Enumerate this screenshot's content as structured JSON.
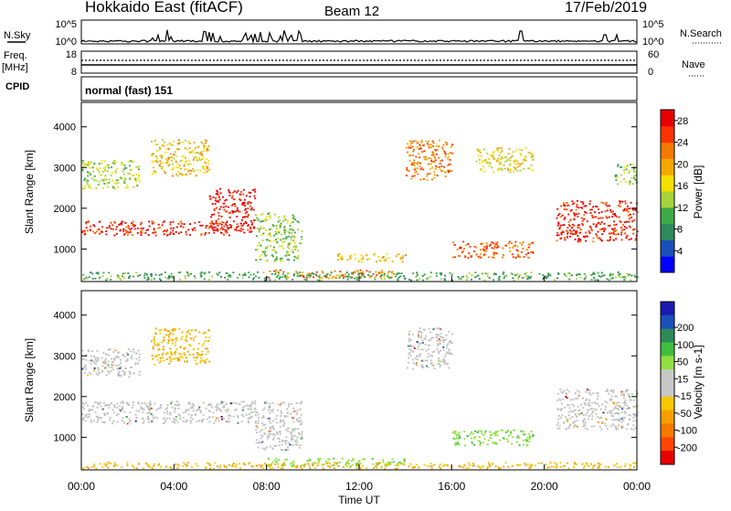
{
  "header": {
    "title": "Hokkaido East (fitACF)",
    "beam": "Beam 12",
    "date": "17/Feb/2019"
  },
  "top_panels": {
    "nsky_label": "N.Sky",
    "nsky_ticks": [
      "10^5",
      "10^0"
    ],
    "nsearch_label": "N.Search",
    "nsearch_ticks": [
      "10^5",
      "10^0"
    ],
    "freq_label": "Freq.",
    "freq_unit": "[MHz]",
    "freq_ticks": [
      "18",
      "8"
    ],
    "nave_label": "Nave",
    "nave_ticks": [
      "60",
      "0"
    ],
    "cpid_label": "CPID",
    "cpid_text": "normal (fast) 151"
  },
  "colors": {
    "power_scale": [
      "#0000ff",
      "#1a4fb8",
      "#2e8a5a",
      "#3fa94a",
      "#a8d23c",
      "#f5e000",
      "#f5a800",
      "#f57a00",
      "#ff3300",
      "#e60000"
    ],
    "velocity_scale": [
      "#1a1ab0",
      "#1a4fb8",
      "#2e8a5a",
      "#3fbf3f",
      "#90e040",
      "#c8c8c8",
      "#c8c8c8",
      "#f5c800",
      "#f5a000",
      "#f57a00",
      "#ff4400",
      "#e60000"
    ],
    "ground_scatter": "#c0c0c0"
  },
  "chart_data": [
    {
      "type": "heatmap",
      "name": "power",
      "ylabel": "Slant Range [km]",
      "yticks": [
        1000,
        2000,
        3000,
        4000
      ],
      "ylim": [
        200,
        4600
      ],
      "xlim_hours": [
        0,
        24
      ],
      "colorbar_label": "Power [dB]",
      "colorbar_ticks": [
        "4",
        "8",
        "12",
        "16",
        "20",
        "24",
        "28"
      ],
      "colorbar_range": [
        0,
        30
      ],
      "regions": [
        {
          "t0": 0.0,
          "t1": 6.5,
          "r0": 1350,
          "r1": 1700,
          "level": 27
        },
        {
          "t0": 5.5,
          "t1": 7.5,
          "r0": 1400,
          "r1": 2500,
          "level": 28
        },
        {
          "t0": 0.0,
          "t1": 2.5,
          "r0": 2500,
          "r1": 3200,
          "level": 14
        },
        {
          "t0": 3.0,
          "t1": 5.5,
          "r0": 2800,
          "r1": 3700,
          "level": 18
        },
        {
          "t0": 7.5,
          "t1": 9.5,
          "r0": 700,
          "r1": 1900,
          "level": 13
        },
        {
          "t0": 8.0,
          "t1": 13.5,
          "r0": 300,
          "r1": 500,
          "level": 22
        },
        {
          "t0": 11.0,
          "t1": 14.0,
          "r0": 700,
          "r1": 900,
          "level": 18
        },
        {
          "t0": 14.0,
          "t1": 16.0,
          "r0": 2700,
          "r1": 3700,
          "level": 22
        },
        {
          "t0": 16.0,
          "t1": 19.5,
          "r0": 800,
          "r1": 1200,
          "level": 24
        },
        {
          "t0": 17.0,
          "t1": 19.5,
          "r0": 2900,
          "r1": 3500,
          "level": 17
        },
        {
          "t0": 20.5,
          "t1": 24.0,
          "r0": 1200,
          "r1": 2200,
          "level": 27
        },
        {
          "t0": 23.0,
          "t1": 24.0,
          "r0": 2600,
          "r1": 3100,
          "level": 13
        },
        {
          "t0": 0.0,
          "t1": 24.0,
          "r0": 250,
          "r1": 450,
          "level": 10
        }
      ]
    },
    {
      "type": "heatmap",
      "name": "velocity",
      "xlabel": "Time UT",
      "ylabel": "Slant Range [km]",
      "xticks": [
        "00:00",
        "04:00",
        "08:00",
        "12:00",
        "16:00",
        "20:00",
        "00:00"
      ],
      "yticks": [
        1000,
        2000,
        3000,
        4000
      ],
      "ylim": [
        200,
        4600
      ],
      "xlim_hours": [
        0,
        24
      ],
      "colorbar_label": "Velocity [m s-1]",
      "colorbar_ticks": [
        "200",
        "100",
        "50",
        "15",
        "-15",
        "-50",
        "-100",
        "-200"
      ],
      "regions": [
        {
          "t0": 0.0,
          "t1": 7.5,
          "r0": 1350,
          "r1": 1900,
          "vel": 0
        },
        {
          "t0": 0.0,
          "t1": 2.5,
          "r0": 2500,
          "r1": 3200,
          "vel": 0
        },
        {
          "t0": 3.0,
          "t1": 5.5,
          "r0": 2800,
          "r1": 3700,
          "vel": -40
        },
        {
          "t0": 7.5,
          "t1": 9.5,
          "r0": 700,
          "r1": 1900,
          "vel": 0
        },
        {
          "t0": 8.0,
          "t1": 14.0,
          "r0": 300,
          "r1": 500,
          "vel": 40
        },
        {
          "t0": 14.0,
          "t1": 16.0,
          "r0": 2700,
          "r1": 3700,
          "vel": 0
        },
        {
          "t0": 16.0,
          "t1": 19.5,
          "r0": 800,
          "r1": 1200,
          "vel": 40
        },
        {
          "t0": 20.5,
          "t1": 24.0,
          "r0": 1200,
          "r1": 2200,
          "vel": 0
        },
        {
          "t0": 0.0,
          "t1": 24.0,
          "r0": 250,
          "r1": 400,
          "vel": -60
        }
      ]
    }
  ]
}
